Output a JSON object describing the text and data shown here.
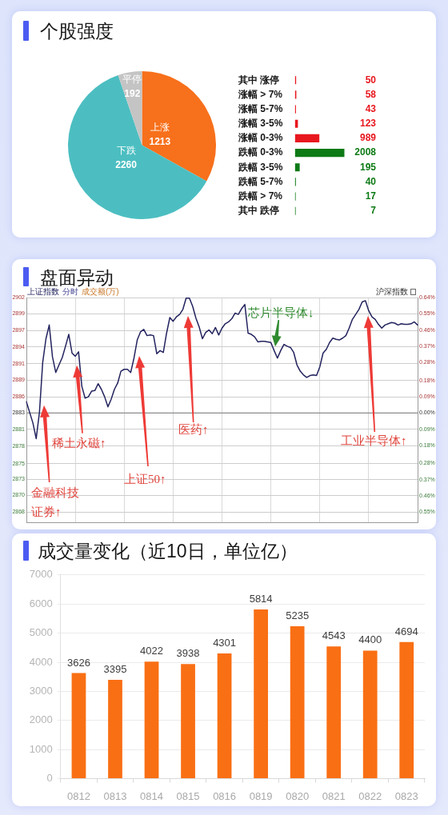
{
  "chart_data": [
    {
      "type": "pie",
      "title": "个股强度",
      "categories": [
        "上涨",
        "下跌",
        "平停"
      ],
      "values": [
        1213,
        2260,
        192
      ],
      "colors": [
        "#f7701b",
        "#4cbec1",
        "#c4c4c4"
      ],
      "data_labels": true
    },
    {
      "type": "bar",
      "orientation": "horizontal",
      "categories": [
        "其中 涨停",
        "涨幅 > 7%",
        "涨幅 5-7%",
        "涨幅 3-5%",
        "涨幅 0-3%",
        "跌幅 0-3%",
        "跌幅 3-5%",
        "跌幅 5-7%",
        "跌幅 > 7%",
        "其中 跌停"
      ],
      "values": [
        50,
        58,
        43,
        123,
        989,
        2008,
        195,
        40,
        17,
        7
      ],
      "colors": [
        "#e8171e",
        "#e8171e",
        "#e8171e",
        "#e8171e",
        "#e8171e",
        "#0d7a15",
        "#0d7a15",
        "#0d7a15",
        "#0d7a15",
        "#0d7a15"
      ],
      "data_labels": true
    },
    {
      "type": "line",
      "title": "盘面异动",
      "categories": [
        null,
        null,
        null,
        null,
        null,
        null,
        null,
        null,
        null,
        null,
        null,
        null,
        null,
        null,
        null,
        null,
        null,
        null,
        null,
        null,
        null,
        null,
        null,
        null,
        null,
        null,
        null,
        null,
        null,
        null,
        null,
        null,
        null,
        null,
        null,
        null,
        null,
        null,
        null,
        null,
        null,
        null,
        null,
        null,
        null,
        null,
        null,
        null,
        null,
        null,
        null,
        null,
        null,
        null,
        null,
        null,
        null,
        null,
        null,
        null,
        null,
        null,
        null,
        null,
        null,
        null,
        null,
        null,
        null,
        null,
        null,
        null,
        null,
        null,
        null,
        null,
        null,
        null,
        null,
        null,
        null,
        null,
        null,
        null,
        null,
        null,
        null,
        null,
        null,
        null,
        null,
        null,
        null,
        null,
        null,
        null,
        null,
        null,
        null,
        null,
        null,
        null,
        null,
        null,
        null,
        null,
        null,
        null,
        null,
        null,
        null,
        null,
        null,
        null,
        null,
        null,
        null,
        null,
        null,
        null,
        null
      ],
      "series": [
        {
          "name": "上证指数",
          "color": "#23235f",
          "values": [
            2885.3,
            2883.6,
            2881.9,
            2879.4,
            2883.6,
            2891.6,
            2895.4,
            2897.6,
            2892.5,
            2890.0,
            2891.2,
            2892.4,
            2894.2,
            2896.1,
            2893.1,
            2892.6,
            2893.3,
            2887.8,
            2885.9,
            2886.1,
            2887.0,
            2887.1,
            2888.2,
            2887.3,
            2886.1,
            2884.5,
            2885.7,
            2887.3,
            2888.3,
            2890.2,
            2890.5,
            2890.5,
            2890.0,
            2892.3,
            2895.2,
            2896.5,
            2896.9,
            2895.9,
            2896.0,
            2895.9,
            2893.0,
            2893.5,
            2893.2,
            2896.3,
            2898.8,
            2898.2,
            2898.9,
            2899.3,
            2900.1,
            2901.9,
            2901.9,
            2900.6,
            2898.7,
            2897.3,
            2895.4,
            2896.4,
            2896.8,
            2896.2,
            2897.2,
            2896.0,
            2897.1,
            2897.8,
            2898.1,
            2898.6,
            2899.5,
            2899.3,
            2900.2,
            2900.9,
            2896.3,
            2896.1,
            2895.7,
            2894.9,
            2895.0,
            2895.0,
            2894.9,
            2894.8,
            2893.5,
            2892.3,
            2893.5,
            2894.5,
            2894.2,
            2894.0,
            2893.2,
            2891.2,
            2890.2,
            2889.6,
            2889.2,
            2889.5,
            2889.6,
            2889.5,
            2890.9,
            2893.1,
            2893.7,
            2894.8,
            2895.5,
            2895.3,
            2895.2,
            2895.5,
            2895.9,
            2897.1,
            2898.5,
            2899.3,
            2900.1,
            2901.3,
            2901.5,
            2899.9,
            2898.9,
            2898.5,
            2897.7,
            2897.1,
            2897.6,
            2897.8,
            2898.0,
            2897.9,
            2897.6,
            2897.8,
            2897.7,
            2897.7,
            2897.8,
            2898.1,
            2897.6
          ]
        }
      ],
      "ylim": [
        2865.9,
        2902
      ],
      "yticks": [
        2902,
        {
          "value": 2899.4,
          "label": "2899"
        },
        {
          "value": 2896.7,
          "label": "2897"
        },
        {
          "value": 2894.1,
          "label": "2894"
        },
        {
          "value": 2891.4,
          "label": "2891"
        },
        {
          "value": 2888.8,
          "label": "2889"
        },
        {
          "value": 2886.1,
          "label": "2886"
        },
        {
          "value": 2883.5,
          "label": "2883"
        },
        {
          "value": 2880.9,
          "label": "2881"
        },
        {
          "value": 2878.2,
          "label": "2878"
        },
        {
          "value": 2875.4,
          "label": "2875"
        },
        {
          "value": 2872.9,
          "label": "2873"
        },
        {
          "value": 2870.3,
          "label": "2870"
        },
        {
          "value": 2867.6,
          "label": "2868"
        }
      ],
      "y2lim": [
        -0.61,
        0.64
      ],
      "y2ticks": [
        {
          "value": 0.64,
          "label": "0.64%"
        },
        {
          "value": 0.55,
          "label": "0.55%"
        },
        {
          "value": 0.46,
          "label": "0.46%"
        },
        {
          "value": 0.37,
          "label": "0.37%"
        },
        {
          "value": 0.28,
          "label": "0.28%"
        },
        {
          "value": 0.18,
          "label": "0.18%"
        },
        {
          "value": 0.09,
          "label": "0.09%"
        },
        {
          "value": 0,
          "label": "0.00%"
        },
        {
          "value": -0.09,
          "label": "0.09%"
        },
        {
          "value": -0.18,
          "label": "0.18%"
        },
        {
          "value": -0.28,
          "label": "0.28%"
        },
        {
          "value": -0.37,
          "label": "0.37%"
        },
        {
          "value": -0.46,
          "label": "0.46%"
        },
        {
          "value": -0.55,
          "label": "0.55%"
        }
      ],
      "grid": true,
      "ref_lines": [
        {
          "axis": "y2",
          "value": 0,
          "color": "#8c8c8c"
        }
      ],
      "annotations": [
        "金融科技证券↑",
        "稀土永磁↑",
        "上证50↑",
        "医药↑",
        "芯片半导体↓",
        "工业半导体↑",
        "分时",
        "成交额(万)",
        "沪深指数"
      ]
    },
    {
      "type": "bar",
      "title": "成交量变化（近10日，单位亿）",
      "categories": [
        "0812",
        "0813",
        "0814",
        "0815",
        "0816",
        "0819",
        "0820",
        "0821",
        "0822",
        "0823"
      ],
      "values": [
        3626,
        3395,
        4022,
        3938,
        4301,
        5814,
        5235,
        4543,
        4400,
        4694
      ],
      "color": "#f96f14",
      "ylim": [
        0,
        7000
      ],
      "yticks": [
        0,
        1000,
        2000,
        3000,
        4000,
        5000,
        6000,
        7000
      ],
      "grid": "y",
      "data_labels": true
    }
  ]
}
